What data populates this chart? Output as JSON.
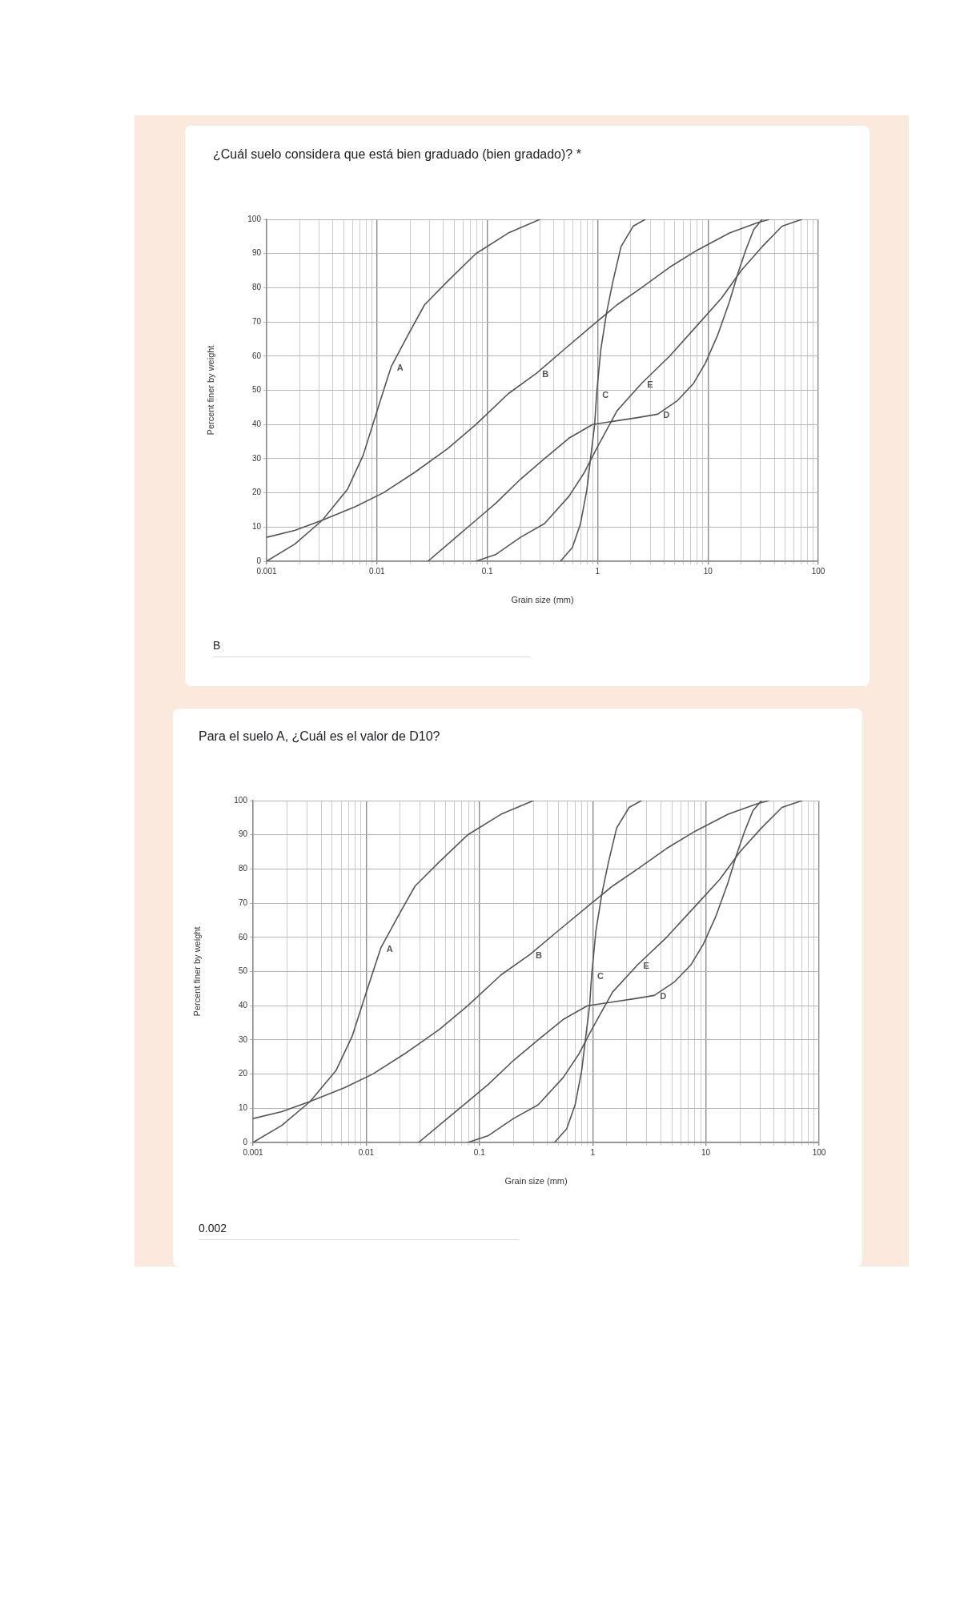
{
  "chart_data": [
    {
      "type": "line",
      "title": "¿Cuál suelo considera que está bien graduado (bien gradado)? *",
      "xlabel": "Grain size (mm)",
      "ylabel": "Percent finer by weight",
      "annotations": [
        "B"
      ],
      "log": "x",
      "grid": true,
      "marker": "none",
      "line_style": "solid",
      "xlim": [
        0.001,
        100
      ],
      "ylim": [
        0,
        100
      ],
      "xticks": [
        0.001,
        {
          "value": 0.002,
          "label": null
        },
        {
          "value": 0.003,
          "label": null
        },
        {
          "value": 0.004,
          "label": null
        },
        {
          "value": 0.005,
          "label": null
        },
        {
          "value": 0.006,
          "label": null
        },
        {
          "value": 0.007,
          "label": null
        },
        {
          "value": 0.008,
          "label": null
        },
        {
          "value": 0.009,
          "label": null
        },
        0.01,
        {
          "value": 0.02,
          "label": null
        },
        {
          "value": 0.03,
          "label": null
        },
        {
          "value": 0.04,
          "label": null
        },
        {
          "value": 0.05,
          "label": null
        },
        {
          "value": 0.06,
          "label": null
        },
        {
          "value": 0.07,
          "label": null
        },
        {
          "value": 0.08,
          "label": null
        },
        {
          "value": 0.09,
          "label": null
        },
        0.1,
        {
          "value": 0.2,
          "label": null
        },
        {
          "value": 0.3,
          "label": null
        },
        {
          "value": 0.4,
          "label": null
        },
        {
          "value": 0.5,
          "label": null
        },
        {
          "value": 0.6,
          "label": null
        },
        {
          "value": 0.7,
          "label": null
        },
        {
          "value": 0.8,
          "label": null
        },
        {
          "value": 0.9,
          "label": null
        },
        1,
        {
          "value": 2,
          "label": null
        },
        {
          "value": 3,
          "label": null
        },
        {
          "value": 4,
          "label": null
        },
        {
          "value": 5,
          "label": null
        },
        {
          "value": 6,
          "label": null
        },
        {
          "value": 7,
          "label": null
        },
        {
          "value": 8,
          "label": null
        },
        {
          "value": 9,
          "label": null
        },
        10,
        {
          "value": 20,
          "label": null
        },
        {
          "value": 30,
          "label": null
        },
        {
          "value": 40,
          "label": null
        },
        {
          "value": 50,
          "label": null
        },
        {
          "value": 60,
          "label": null
        },
        {
          "value": 70,
          "label": null
        },
        {
          "value": 80,
          "label": null
        },
        {
          "value": 90,
          "label": null
        },
        100
      ],
      "yticks": [
        0,
        10,
        20,
        30,
        40,
        50,
        60,
        70,
        80,
        90,
        100
      ],
      "series": [
        {
          "name": "A",
          "color": "#555555",
          "x": [
            0.001,
            0.0018,
            0.0032,
            0.0054,
            0.0075,
            0.0105,
            0.0135,
            0.019,
            0.027,
            0.044,
            0.079,
            0.155,
            0.3
          ],
          "values": [
            0,
            5,
            12,
            21,
            31,
            46,
            57,
            66,
            75,
            82,
            90,
            96,
            100
          ]
        },
        {
          "name": "B",
          "color": "#555555",
          "x": [
            0.001,
            0.0018,
            0.0032,
            0.0064,
            0.0114,
            0.022,
            0.044,
            0.079,
            0.155,
            0.28,
            0.5,
            0.9,
            1.5,
            2.5,
            4.5,
            8,
            15.7,
            28,
            36
          ],
          "values": [
            7,
            9,
            12,
            16,
            20,
            26,
            33,
            40,
            49,
            55,
            62,
            69,
            75,
            80,
            86,
            91,
            96,
            99,
            100
          ]
        },
        {
          "name": "C",
          "color": "#555555",
          "x": [
            0.46,
            0.59,
            0.7,
            0.8,
            0.87,
            0.94,
            0.98,
            1.07,
            1.21,
            1.38,
            1.63,
            2.1,
            2.7
          ],
          "values": [
            0,
            4,
            11,
            21,
            31,
            40,
            49,
            62,
            73,
            82,
            92,
            98,
            100
          ]
        },
        {
          "name": "D",
          "color": "#555555",
          "x": [
            0.029,
            0.052,
            0.079,
            0.12,
            0.2,
            0.33,
            0.55,
            0.9,
            2.3,
            3.5,
            5.3,
            7.4,
            9.5,
            12.2,
            15.7,
            18.6,
            22,
            26,
            31
          ],
          "values": [
            0,
            7,
            12,
            17,
            24,
            30,
            36,
            40,
            42,
            43,
            47,
            52,
            58,
            66,
            76,
            84,
            91,
            97,
            100
          ]
        },
        {
          "name": "E",
          "color": "#555555",
          "x": [
            0.079,
            0.12,
            0.2,
            0.33,
            0.55,
            0.76,
            0.98,
            1.5,
            2.5,
            4.5,
            8,
            13.3,
            20,
            31,
            47,
            71
          ],
          "values": [
            0,
            2,
            7,
            11,
            19,
            26,
            33,
            44,
            52,
            60,
            69,
            77,
            85,
            92,
            98,
            100
          ]
        }
      ]
    },
    {
      "type": "line",
      "title": "Para el suelo A, ¿Cuál es el valor de D10?",
      "xlabel": "Grain size (mm)",
      "ylabel": "Percent finer by weight",
      "annotations": [
        "0.002"
      ],
      "log": "x",
      "grid": true,
      "marker": "none",
      "line_style": "solid",
      "xlim": [
        0.001,
        100
      ],
      "ylim": [
        0,
        100
      ],
      "xticks": [
        0.001,
        {
          "value": 0.002,
          "label": null
        },
        {
          "value": 0.003,
          "label": null
        },
        {
          "value": 0.004,
          "label": null
        },
        {
          "value": 0.005,
          "label": null
        },
        {
          "value": 0.006,
          "label": null
        },
        {
          "value": 0.007,
          "label": null
        },
        {
          "value": 0.008,
          "label": null
        },
        {
          "value": 0.009,
          "label": null
        },
        0.01,
        {
          "value": 0.02,
          "label": null
        },
        {
          "value": 0.03,
          "label": null
        },
        {
          "value": 0.04,
          "label": null
        },
        {
          "value": 0.05,
          "label": null
        },
        {
          "value": 0.06,
          "label": null
        },
        {
          "value": 0.07,
          "label": null
        },
        {
          "value": 0.08,
          "label": null
        },
        {
          "value": 0.09,
          "label": null
        },
        0.1,
        {
          "value": 0.2,
          "label": null
        },
        {
          "value": 0.3,
          "label": null
        },
        {
          "value": 0.4,
          "label": null
        },
        {
          "value": 0.5,
          "label": null
        },
        {
          "value": 0.6,
          "label": null
        },
        {
          "value": 0.7,
          "label": null
        },
        {
          "value": 0.8,
          "label": null
        },
        {
          "value": 0.9,
          "label": null
        },
        1,
        {
          "value": 2,
          "label": null
        },
        {
          "value": 3,
          "label": null
        },
        {
          "value": 4,
          "label": null
        },
        {
          "value": 5,
          "label": null
        },
        {
          "value": 6,
          "label": null
        },
        {
          "value": 7,
          "label": null
        },
        {
          "value": 8,
          "label": null
        },
        {
          "value": 9,
          "label": null
        },
        10,
        {
          "value": 20,
          "label": null
        },
        {
          "value": 30,
          "label": null
        },
        {
          "value": 40,
          "label": null
        },
        {
          "value": 50,
          "label": null
        },
        {
          "value": 60,
          "label": null
        },
        {
          "value": 70,
          "label": null
        },
        {
          "value": 80,
          "label": null
        },
        {
          "value": 90,
          "label": null
        },
        100
      ],
      "yticks": [
        0,
        10,
        20,
        30,
        40,
        50,
        60,
        70,
        80,
        90,
        100
      ],
      "series": [
        {
          "name": "A",
          "color": "#555555",
          "x": [
            0.001,
            0.0018,
            0.0032,
            0.0054,
            0.0075,
            0.0105,
            0.0135,
            0.019,
            0.027,
            0.044,
            0.079,
            0.155,
            0.3
          ],
          "values": [
            0,
            5,
            12,
            21,
            31,
            46,
            57,
            66,
            75,
            82,
            90,
            96,
            100
          ]
        },
        {
          "name": "B",
          "color": "#555555",
          "x": [
            0.001,
            0.0018,
            0.0032,
            0.0064,
            0.0114,
            0.022,
            0.044,
            0.079,
            0.155,
            0.28,
            0.5,
            0.9,
            1.5,
            2.5,
            4.5,
            8,
            15.7,
            28,
            36
          ],
          "values": [
            7,
            9,
            12,
            16,
            20,
            26,
            33,
            40,
            49,
            55,
            62,
            69,
            75,
            80,
            86,
            91,
            96,
            99,
            100
          ]
        },
        {
          "name": "C",
          "color": "#555555",
          "x": [
            0.46,
            0.59,
            0.7,
            0.8,
            0.87,
            0.94,
            0.98,
            1.07,
            1.21,
            1.38,
            1.63,
            2.1,
            2.7
          ],
          "values": [
            0,
            4,
            11,
            21,
            31,
            40,
            49,
            62,
            73,
            82,
            92,
            98,
            100
          ]
        },
        {
          "name": "D",
          "color": "#555555",
          "x": [
            0.029,
            0.052,
            0.079,
            0.12,
            0.2,
            0.33,
            0.55,
            0.9,
            2.3,
            3.5,
            5.3,
            7.4,
            9.5,
            12.2,
            15.7,
            18.6,
            22,
            26,
            31
          ],
          "values": [
            0,
            7,
            12,
            17,
            24,
            30,
            36,
            40,
            42,
            43,
            47,
            52,
            58,
            66,
            76,
            84,
            91,
            97,
            100
          ]
        },
        {
          "name": "E",
          "color": "#555555",
          "x": [
            0.079,
            0.12,
            0.2,
            0.33,
            0.55,
            0.76,
            0.98,
            1.5,
            2.5,
            4.5,
            8,
            13.3,
            20,
            31,
            47,
            71
          ],
          "values": [
            0,
            2,
            7,
            11,
            19,
            26,
            33,
            44,
            52,
            60,
            69,
            77,
            85,
            92,
            98,
            100
          ]
        }
      ]
    }
  ]
}
